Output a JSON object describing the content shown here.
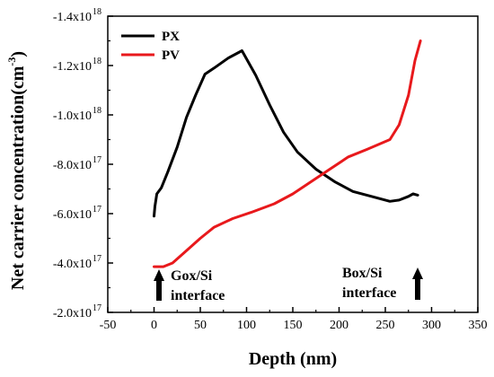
{
  "chart_data": {
    "type": "line",
    "xlabel": "Depth (nm)",
    "ylabel": "Net carrier concentration(cm",
    "ylabel_sup": "-3",
    "xlim": [
      -50,
      350
    ],
    "ylim": [
      -2e+17,
      -1.4e+18
    ],
    "xticks": [
      "-50",
      "0",
      "50",
      "100",
      "150",
      "200",
      "250",
      "300",
      "350"
    ],
    "xtick_values": [
      -50,
      0,
      50,
      100,
      150,
      200,
      250,
      300,
      350
    ],
    "yticks": [
      {
        "value": -1.4e+18,
        "mantissa": "-1.4x10",
        "exp": "18"
      },
      {
        "value": -1.2e+18,
        "mantissa": "-1.2x10",
        "exp": "18"
      },
      {
        "value": -1e+18,
        "mantissa": "-1.0x10",
        "exp": "18"
      },
      {
        "value": -8e+17,
        "mantissa": "-8.0x10",
        "exp": "17"
      },
      {
        "value": -6e+17,
        "mantissa": "-6.0x10",
        "exp": "17"
      },
      {
        "value": -4e+17,
        "mantissa": "-4.0x10",
        "exp": "17"
      },
      {
        "value": -2e+17,
        "mantissa": "-2.0x10",
        "exp": "17"
      }
    ],
    "series": [
      {
        "name": "PX",
        "color": "#000000",
        "points": [
          [
            0,
            -5.9e+17
          ],
          [
            1,
            -6.3e+17
          ],
          [
            3,
            -6.8e+17
          ],
          [
            8,
            -7.05e+17
          ],
          [
            15,
            -7.7e+17
          ],
          [
            25,
            -8.7e+17
          ],
          [
            35,
            -9.9e+17
          ],
          [
            45,
            -1.08e+18
          ],
          [
            55,
            -1.165e+18
          ],
          [
            65,
            -1.19e+18
          ],
          [
            80,
            -1.23e+18
          ],
          [
            95,
            -1.26e+18
          ],
          [
            110,
            -1.16e+18
          ],
          [
            125,
            -1.04e+18
          ],
          [
            140,
            -9.3e+17
          ],
          [
            155,
            -8.5e+17
          ],
          [
            175,
            -7.8e+17
          ],
          [
            195,
            -7.3e+17
          ],
          [
            215,
            -6.9e+17
          ],
          [
            235,
            -6.7e+17
          ],
          [
            255,
            -6.5e+17
          ],
          [
            265,
            -6.55e+17
          ],
          [
            275,
            -6.7e+17
          ],
          [
            280,
            -6.8e+17
          ],
          [
            285,
            -6.75e+17
          ]
        ]
      },
      {
        "name": "PV",
        "color": "#e8191c",
        "points": [
          [
            0,
            -3.85e+17
          ],
          [
            10,
            -3.85e+17
          ],
          [
            20,
            -4e+17
          ],
          [
            35,
            -4.5e+17
          ],
          [
            50,
            -5e+17
          ],
          [
            65,
            -5.45e+17
          ],
          [
            85,
            -5.8e+17
          ],
          [
            105,
            -6.05e+17
          ],
          [
            130,
            -6.4e+17
          ],
          [
            150,
            -6.8e+17
          ],
          [
            170,
            -7.3e+17
          ],
          [
            190,
            -7.8e+17
          ],
          [
            210,
            -8.3e+17
          ],
          [
            230,
            -8.6e+17
          ],
          [
            255,
            -9e+17
          ],
          [
            265,
            -9.6e+17
          ],
          [
            275,
            -1.08e+18
          ],
          [
            282,
            -1.22e+18
          ],
          [
            288,
            -1.3e+18
          ]
        ]
      }
    ],
    "legend_position": "top-left",
    "annotations": {
      "gox": [
        "Gox/Si",
        "interface"
      ],
      "box": [
        "Box/Si",
        "interface"
      ]
    },
    "grid": false
  }
}
